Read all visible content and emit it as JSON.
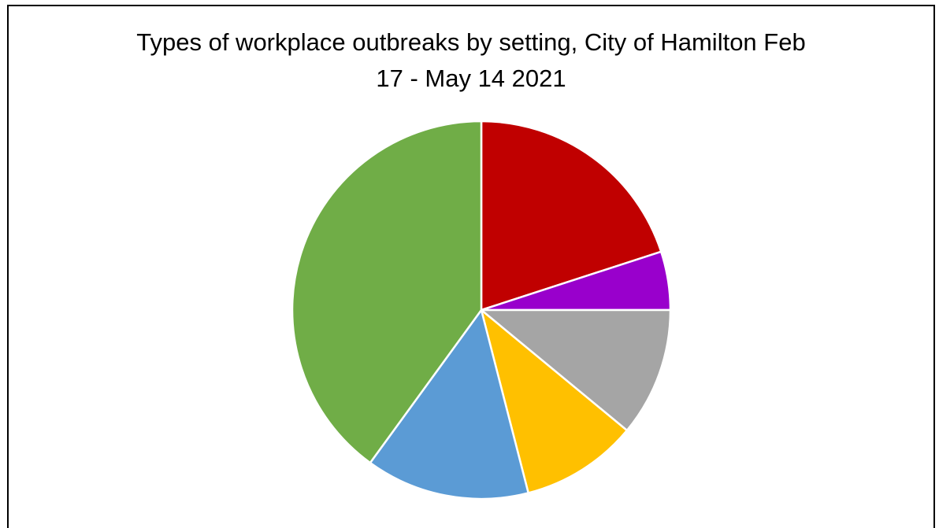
{
  "chart_data": {
    "type": "pie",
    "title_line1": "Types of workplace outbreaks by setting, City of Hamilton Feb",
    "title_line2": "17 - May 14 2021",
    "slices": [
      {
        "value": 20.0,
        "color": "#c00000"
      },
      {
        "value": 5.0,
        "color": "#9900cc"
      },
      {
        "value": 11.0,
        "color": "#a5a5a5"
      },
      {
        "value": 10.0,
        "color": "#ffc000"
      },
      {
        "value": 14.0,
        "color": "#5b9bd5"
      },
      {
        "value": 40.0,
        "color": "#70ad47"
      }
    ],
    "start_angle": "12 o'clock",
    "direction": "clockwise",
    "slice_border_color": "#ffffff",
    "legend": "none"
  }
}
